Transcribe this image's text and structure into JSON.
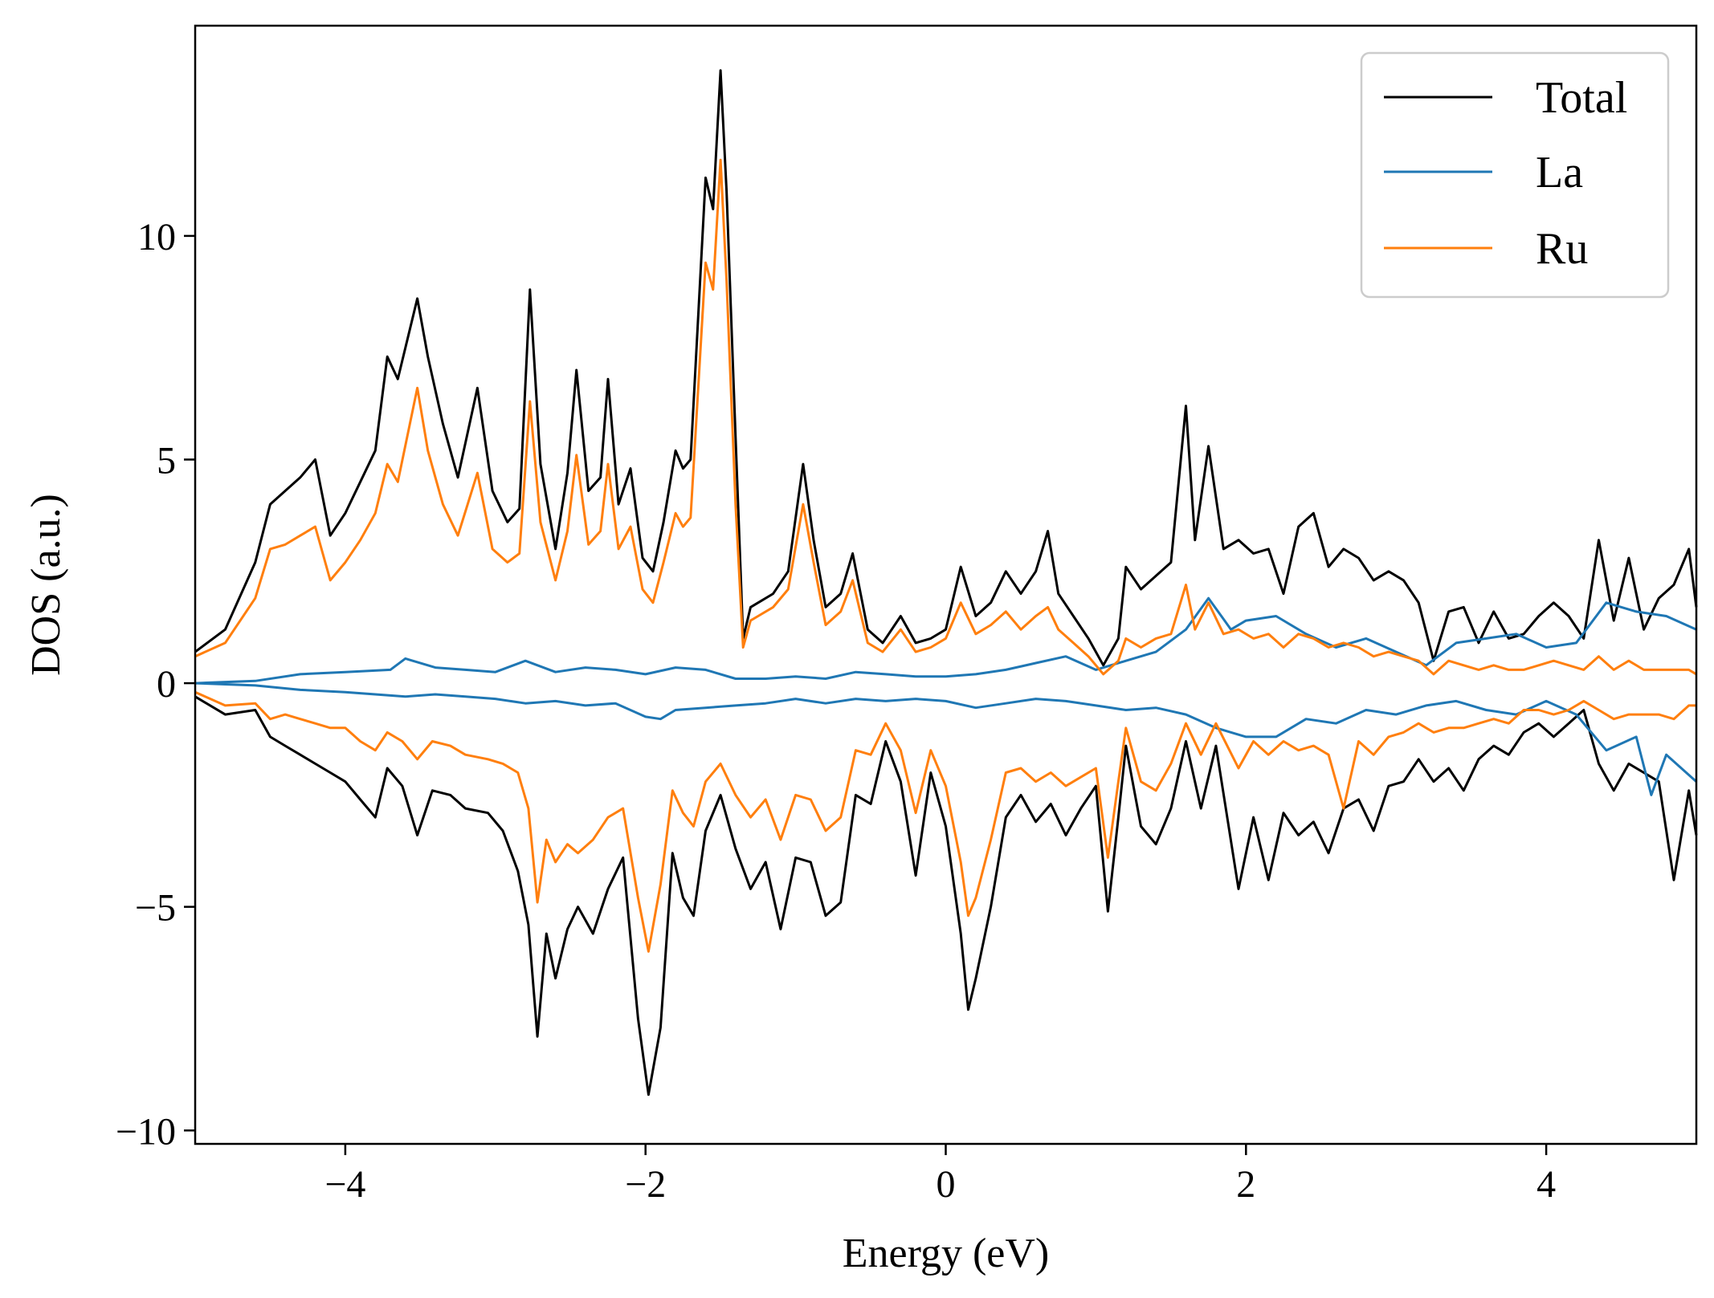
{
  "chart_data": {
    "type": "line",
    "title": "",
    "xlabel": "Energy (eV)",
    "ylabel": "DOS (a.u.)",
    "xlim": [
      -5,
      5
    ],
    "ylim": [
      -10.3,
      14.7
    ],
    "xticks": [
      -4,
      -2,
      0,
      2,
      4
    ],
    "xtick_labels": [
      "−4",
      "−2",
      "0",
      "2",
      "4"
    ],
    "yticks": [
      -10,
      -5,
      0,
      5,
      10
    ],
    "ytick_labels": [
      "−10",
      "−5",
      "0",
      "5",
      "10"
    ],
    "grid": false,
    "legend_position": "top-right",
    "colors": {
      "Total": "#000000",
      "La": "#1f77b4",
      "Ru": "#ff7f0e"
    },
    "series": [
      {
        "name": "Total",
        "spin": "up",
        "x": [
          -5.0,
          -4.8,
          -4.6,
          -4.5,
          -4.4,
          -4.3,
          -4.2,
          -4.1,
          -4.0,
          -3.9,
          -3.8,
          -3.72,
          -3.65,
          -3.52,
          -3.45,
          -3.35,
          -3.25,
          -3.12,
          -3.02,
          -2.92,
          -2.84,
          -2.77,
          -2.7,
          -2.6,
          -2.52,
          -2.46,
          -2.38,
          -2.3,
          -2.25,
          -2.18,
          -2.1,
          -2.02,
          -1.95,
          -1.88,
          -1.8,
          -1.75,
          -1.7,
          -1.6,
          -1.55,
          -1.5,
          -1.46,
          -1.4,
          -1.35,
          -1.3,
          -1.25,
          -1.15,
          -1.05,
          -0.95,
          -0.88,
          -0.8,
          -0.7,
          -0.62,
          -0.52,
          -0.42,
          -0.3,
          -0.2,
          -0.1,
          0.0,
          0.1,
          0.2,
          0.3,
          0.4,
          0.5,
          0.6,
          0.68,
          0.75,
          0.85,
          0.95,
          1.05,
          1.15,
          1.2,
          1.3,
          1.4,
          1.5,
          1.6,
          1.66,
          1.75,
          1.85,
          1.95,
          2.05,
          2.15,
          2.25,
          2.35,
          2.45,
          2.55,
          2.65,
          2.75,
          2.85,
          2.95,
          3.05,
          3.15,
          3.25,
          3.35,
          3.45,
          3.55,
          3.65,
          3.75,
          3.85,
          3.95,
          4.05,
          4.15,
          4.25,
          4.35,
          4.45,
          4.55,
          4.65,
          4.75,
          4.85,
          4.95,
          5.0
        ],
        "y": [
          0.7,
          1.2,
          2.7,
          4.0,
          4.3,
          4.6,
          5.0,
          3.3,
          3.8,
          4.5,
          5.2,
          7.3,
          6.8,
          8.6,
          7.3,
          5.8,
          4.6,
          6.6,
          4.3,
          3.6,
          3.9,
          8.8,
          4.9,
          3.0,
          4.7,
          7.0,
          4.3,
          4.6,
          6.8,
          4.0,
          4.8,
          2.8,
          2.5,
          3.6,
          5.2,
          4.8,
          5.0,
          11.3,
          10.6,
          13.7,
          11.0,
          5.5,
          1.0,
          1.7,
          1.8,
          2.0,
          2.5,
          4.9,
          3.2,
          1.7,
          2.0,
          2.9,
          1.2,
          0.9,
          1.5,
          0.9,
          1.0,
          1.2,
          2.6,
          1.5,
          1.8,
          2.5,
          2.0,
          2.5,
          3.4,
          2.0,
          1.5,
          1.0,
          0.4,
          1.0,
          2.6,
          2.1,
          2.4,
          2.7,
          6.2,
          3.2,
          5.3,
          3.0,
          3.2,
          2.9,
          3.0,
          2.0,
          3.5,
          3.8,
          2.6,
          3.0,
          2.8,
          2.3,
          2.5,
          2.3,
          1.8,
          0.5,
          1.6,
          1.7,
          0.9,
          1.6,
          1.0,
          1.1,
          1.5,
          1.8,
          1.5,
          1.0,
          3.2,
          1.4,
          2.8,
          1.2,
          1.9,
          2.2,
          3.0,
          1.7
        ]
      },
      {
        "name": "Total",
        "spin": "down",
        "x": [
          -5.0,
          -4.8,
          -4.6,
          -4.5,
          -4.4,
          -4.3,
          -4.2,
          -4.1,
          -4.0,
          -3.9,
          -3.8,
          -3.72,
          -3.62,
          -3.52,
          -3.42,
          -3.3,
          -3.2,
          -3.05,
          -2.95,
          -2.85,
          -2.78,
          -2.72,
          -2.66,
          -2.6,
          -2.52,
          -2.45,
          -2.35,
          -2.25,
          -2.15,
          -2.05,
          -1.98,
          -1.9,
          -1.82,
          -1.75,
          -1.68,
          -1.6,
          -1.5,
          -1.4,
          -1.3,
          -1.2,
          -1.1,
          -1.0,
          -0.9,
          -0.8,
          -0.7,
          -0.6,
          -0.5,
          -0.4,
          -0.3,
          -0.2,
          -0.1,
          0.0,
          0.1,
          0.15,
          0.2,
          0.3,
          0.4,
          0.5,
          0.6,
          0.7,
          0.8,
          0.9,
          1.0,
          1.08,
          1.15,
          1.2,
          1.3,
          1.4,
          1.5,
          1.6,
          1.7,
          1.8,
          1.95,
          2.05,
          2.15,
          2.25,
          2.35,
          2.45,
          2.55,
          2.65,
          2.75,
          2.85,
          2.95,
          3.05,
          3.15,
          3.25,
          3.35,
          3.45,
          3.55,
          3.65,
          3.75,
          3.85,
          3.95,
          4.05,
          4.15,
          4.25,
          4.35,
          4.45,
          4.55,
          4.65,
          4.75,
          4.85,
          4.95,
          5.0
        ],
        "y": [
          -0.3,
          -0.7,
          -0.6,
          -1.2,
          -1.4,
          -1.6,
          -1.8,
          -2.0,
          -2.2,
          -2.6,
          -3.0,
          -1.9,
          -2.3,
          -3.4,
          -2.4,
          -2.5,
          -2.8,
          -2.9,
          -3.3,
          -4.2,
          -5.4,
          -7.9,
          -5.6,
          -6.6,
          -5.5,
          -5.0,
          -5.6,
          -4.6,
          -3.9,
          -7.5,
          -9.2,
          -7.7,
          -3.8,
          -4.8,
          -5.2,
          -3.3,
          -2.5,
          -3.7,
          -4.6,
          -4.0,
          -5.5,
          -3.9,
          -4.0,
          -5.2,
          -4.9,
          -2.5,
          -2.7,
          -1.3,
          -2.2,
          -4.3,
          -2.0,
          -3.2,
          -5.6,
          -7.3,
          -6.6,
          -5.0,
          -3.0,
          -2.5,
          -3.1,
          -2.7,
          -3.4,
          -2.8,
          -2.3,
          -5.1,
          -3.0,
          -1.4,
          -3.2,
          -3.6,
          -2.8,
          -1.3,
          -2.8,
          -1.4,
          -4.6,
          -3.0,
          -4.4,
          -2.9,
          -3.4,
          -3.1,
          -3.8,
          -2.8,
          -2.6,
          -3.3,
          -2.3,
          -2.2,
          -1.7,
          -2.2,
          -1.9,
          -2.4,
          -1.7,
          -1.4,
          -1.6,
          -1.1,
          -0.9,
          -1.2,
          -0.9,
          -0.6,
          -1.8,
          -2.4,
          -1.8,
          -2.0,
          -2.2,
          -4.4,
          -2.4,
          -3.4
        ]
      },
      {
        "name": "La",
        "spin": "up",
        "x": [
          -5.0,
          -4.6,
          -4.3,
          -4.0,
          -3.7,
          -3.6,
          -3.4,
          -3.2,
          -3.0,
          -2.8,
          -2.6,
          -2.4,
          -2.2,
          -2.0,
          -1.8,
          -1.6,
          -1.4,
          -1.2,
          -1.0,
          -0.8,
          -0.6,
          -0.4,
          -0.2,
          0.0,
          0.2,
          0.4,
          0.6,
          0.8,
          1.0,
          1.2,
          1.4,
          1.6,
          1.75,
          1.9,
          2.0,
          2.2,
          2.4,
          2.6,
          2.8,
          3.0,
          3.2,
          3.4,
          3.6,
          3.8,
          4.0,
          4.2,
          4.4,
          4.6,
          4.8,
          5.0
        ],
        "y": [
          0.0,
          0.05,
          0.2,
          0.25,
          0.3,
          0.55,
          0.35,
          0.3,
          0.25,
          0.5,
          0.25,
          0.35,
          0.3,
          0.2,
          0.35,
          0.3,
          0.1,
          0.1,
          0.15,
          0.1,
          0.25,
          0.2,
          0.15,
          0.15,
          0.2,
          0.3,
          0.45,
          0.6,
          0.3,
          0.5,
          0.7,
          1.2,
          1.9,
          1.2,
          1.4,
          1.5,
          1.1,
          0.8,
          1.0,
          0.7,
          0.4,
          0.9,
          1.0,
          1.1,
          0.8,
          0.9,
          1.8,
          1.6,
          1.5,
          1.2
        ]
      },
      {
        "name": "La",
        "spin": "down",
        "x": [
          -5.0,
          -4.6,
          -4.3,
          -4.0,
          -3.8,
          -3.6,
          -3.4,
          -3.2,
          -3.0,
          -2.8,
          -2.6,
          -2.4,
          -2.2,
          -2.0,
          -1.9,
          -1.8,
          -1.6,
          -1.4,
          -1.2,
          -1.0,
          -0.8,
          -0.6,
          -0.4,
          -0.2,
          0.0,
          0.2,
          0.4,
          0.6,
          0.8,
          1.0,
          1.2,
          1.4,
          1.6,
          1.8,
          2.0,
          2.2,
          2.4,
          2.6,
          2.8,
          3.0,
          3.2,
          3.4,
          3.6,
          3.8,
          4.0,
          4.2,
          4.4,
          4.6,
          4.7,
          4.8,
          5.0
        ],
        "y": [
          0.0,
          -0.05,
          -0.15,
          -0.2,
          -0.25,
          -0.3,
          -0.25,
          -0.3,
          -0.35,
          -0.45,
          -0.4,
          -0.5,
          -0.45,
          -0.75,
          -0.8,
          -0.6,
          -0.55,
          -0.5,
          -0.45,
          -0.35,
          -0.45,
          -0.35,
          -0.4,
          -0.35,
          -0.4,
          -0.55,
          -0.45,
          -0.35,
          -0.4,
          -0.5,
          -0.6,
          -0.55,
          -0.7,
          -1.0,
          -1.2,
          -1.2,
          -0.8,
          -0.9,
          -0.6,
          -0.7,
          -0.5,
          -0.4,
          -0.6,
          -0.7,
          -0.4,
          -0.7,
          -1.5,
          -1.2,
          -2.5,
          -1.6,
          -2.2
        ]
      },
      {
        "name": "Ru",
        "spin": "up",
        "x": [
          -5.0,
          -4.8,
          -4.6,
          -4.5,
          -4.4,
          -4.3,
          -4.2,
          -4.1,
          -4.0,
          -3.9,
          -3.8,
          -3.72,
          -3.65,
          -3.52,
          -3.45,
          -3.35,
          -3.25,
          -3.12,
          -3.02,
          -2.92,
          -2.84,
          -2.77,
          -2.7,
          -2.6,
          -2.52,
          -2.46,
          -2.38,
          -2.3,
          -2.25,
          -2.18,
          -2.1,
          -2.02,
          -1.95,
          -1.88,
          -1.8,
          -1.75,
          -1.7,
          -1.6,
          -1.55,
          -1.5,
          -1.46,
          -1.4,
          -1.35,
          -1.3,
          -1.25,
          -1.15,
          -1.05,
          -0.95,
          -0.88,
          -0.8,
          -0.7,
          -0.62,
          -0.52,
          -0.42,
          -0.3,
          -0.2,
          -0.1,
          0.0,
          0.1,
          0.2,
          0.3,
          0.4,
          0.5,
          0.6,
          0.68,
          0.75,
          0.85,
          0.95,
          1.05,
          1.15,
          1.2,
          1.3,
          1.4,
          1.5,
          1.6,
          1.66,
          1.75,
          1.85,
          1.95,
          2.05,
          2.15,
          2.25,
          2.35,
          2.45,
          2.55,
          2.65,
          2.75,
          2.85,
          2.95,
          3.05,
          3.15,
          3.25,
          3.35,
          3.45,
          3.55,
          3.65,
          3.75,
          3.85,
          3.95,
          4.05,
          4.15,
          4.25,
          4.35,
          4.45,
          4.55,
          4.65,
          4.75,
          4.85,
          4.95,
          5.0
        ],
        "y": [
          0.6,
          0.9,
          1.9,
          3.0,
          3.1,
          3.3,
          3.5,
          2.3,
          2.7,
          3.2,
          3.8,
          4.9,
          4.5,
          6.6,
          5.2,
          4.0,
          3.3,
          4.7,
          3.0,
          2.7,
          2.9,
          6.3,
          3.6,
          2.3,
          3.4,
          5.1,
          3.1,
          3.4,
          4.9,
          3.0,
          3.5,
          2.1,
          1.8,
          2.7,
          3.8,
          3.5,
          3.7,
          9.4,
          8.8,
          11.7,
          9.0,
          4.0,
          0.8,
          1.4,
          1.5,
          1.7,
          2.1,
          4.0,
          2.7,
          1.3,
          1.6,
          2.3,
          0.9,
          0.7,
          1.2,
          0.7,
          0.8,
          1.0,
          1.8,
          1.1,
          1.3,
          1.6,
          1.2,
          1.5,
          1.7,
          1.2,
          0.9,
          0.6,
          0.2,
          0.5,
          1.0,
          0.8,
          1.0,
          1.1,
          2.2,
          1.2,
          1.8,
          1.1,
          1.2,
          1.0,
          1.1,
          0.8,
          1.1,
          1.0,
          0.8,
          0.9,
          0.8,
          0.6,
          0.7,
          0.6,
          0.5,
          0.2,
          0.5,
          0.4,
          0.3,
          0.4,
          0.3,
          0.3,
          0.4,
          0.5,
          0.4,
          0.3,
          0.6,
          0.3,
          0.5,
          0.3,
          0.3,
          0.3,
          0.3,
          0.2
        ]
      },
      {
        "name": "Ru",
        "spin": "down",
        "x": [
          -5.0,
          -4.8,
          -4.6,
          -4.5,
          -4.4,
          -4.3,
          -4.2,
          -4.1,
          -4.0,
          -3.9,
          -3.8,
          -3.72,
          -3.62,
          -3.52,
          -3.42,
          -3.3,
          -3.2,
          -3.05,
          -2.95,
          -2.85,
          -2.78,
          -2.72,
          -2.66,
          -2.6,
          -2.52,
          -2.45,
          -2.35,
          -2.25,
          -2.15,
          -2.05,
          -1.98,
          -1.9,
          -1.82,
          -1.75,
          -1.68,
          -1.6,
          -1.5,
          -1.4,
          -1.3,
          -1.2,
          -1.1,
          -1.0,
          -0.9,
          -0.8,
          -0.7,
          -0.6,
          -0.5,
          -0.4,
          -0.3,
          -0.2,
          -0.1,
          0.0,
          0.1,
          0.15,
          0.2,
          0.3,
          0.4,
          0.5,
          0.6,
          0.7,
          0.8,
          0.9,
          1.0,
          1.08,
          1.15,
          1.2,
          1.3,
          1.4,
          1.5,
          1.6,
          1.7,
          1.8,
          1.95,
          2.05,
          2.15,
          2.25,
          2.35,
          2.45,
          2.55,
          2.65,
          2.75,
          2.85,
          2.95,
          3.05,
          3.15,
          3.25,
          3.35,
          3.45,
          3.55,
          3.65,
          3.75,
          3.85,
          3.95,
          4.05,
          4.15,
          4.25,
          4.35,
          4.45,
          4.55,
          4.65,
          4.75,
          4.85,
          4.95,
          5.0
        ],
        "y": [
          -0.2,
          -0.5,
          -0.45,
          -0.8,
          -0.7,
          -0.8,
          -0.9,
          -1.0,
          -1.0,
          -1.3,
          -1.5,
          -1.1,
          -1.3,
          -1.7,
          -1.3,
          -1.4,
          -1.6,
          -1.7,
          -1.8,
          -2.0,
          -2.8,
          -4.9,
          -3.5,
          -4.0,
          -3.6,
          -3.8,
          -3.5,
          -3.0,
          -2.8,
          -4.8,
          -6.0,
          -4.5,
          -2.4,
          -2.9,
          -3.2,
          -2.2,
          -1.8,
          -2.5,
          -3.0,
          -2.6,
          -3.5,
          -2.5,
          -2.6,
          -3.3,
          -3.0,
          -1.5,
          -1.6,
          -0.9,
          -1.5,
          -2.9,
          -1.5,
          -2.3,
          -4.0,
          -5.2,
          -4.8,
          -3.5,
          -2.0,
          -1.9,
          -2.2,
          -2.0,
          -2.3,
          -2.1,
          -1.9,
          -3.9,
          -2.2,
          -1.0,
          -2.2,
          -2.4,
          -1.8,
          -0.9,
          -1.6,
          -0.9,
          -1.9,
          -1.3,
          -1.6,
          -1.3,
          -1.5,
          -1.4,
          -1.6,
          -2.8,
          -1.3,
          -1.6,
          -1.2,
          -1.1,
          -0.9,
          -1.1,
          -1.0,
          -1.0,
          -0.9,
          -0.8,
          -0.9,
          -0.6,
          -0.6,
          -0.7,
          -0.6,
          -0.4,
          -0.6,
          -0.8,
          -0.7,
          -0.7,
          -0.7,
          -0.8,
          -0.5,
          -0.5
        ]
      }
    ]
  }
}
